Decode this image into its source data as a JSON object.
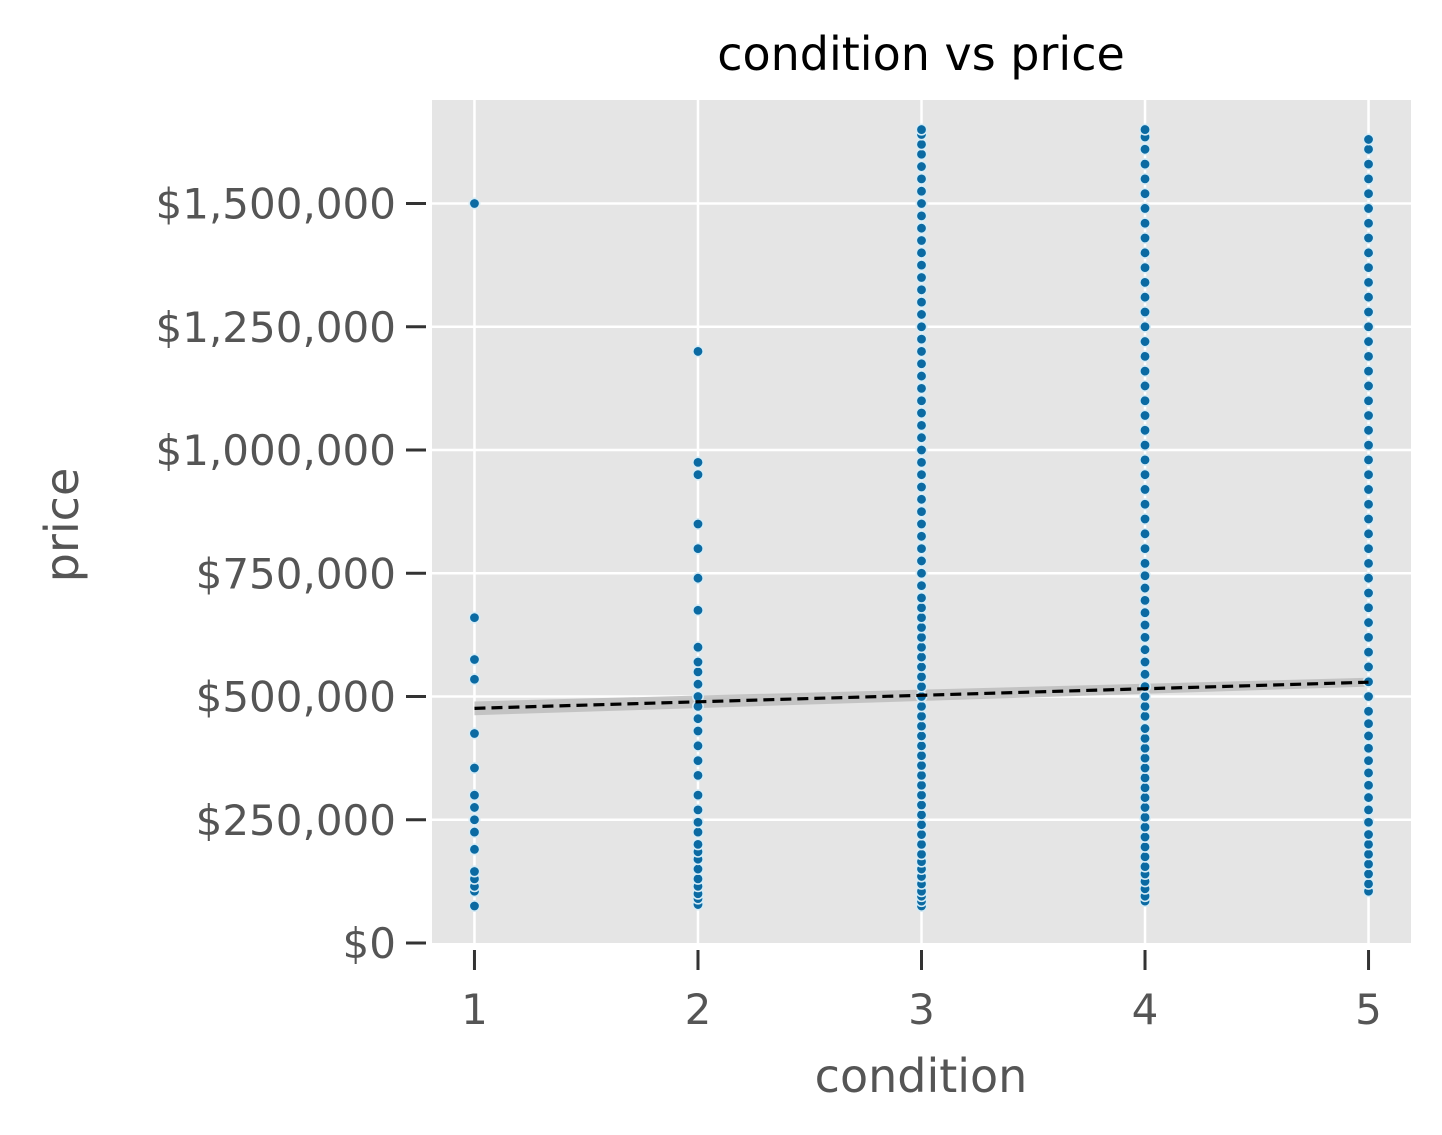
{
  "chart_data": {
    "type": "scatter",
    "title": "condition vs price",
    "xlabel": "condition",
    "ylabel": "price",
    "x_ticks": [
      "1",
      "2",
      "3",
      "4",
      "5"
    ],
    "y_ticks": [
      "$0",
      "$250,000",
      "$500,000",
      "$750,000",
      "$1,000,000",
      "$1,250,000",
      "$1,500,000"
    ],
    "y_tick_values": [
      0,
      250000,
      500000,
      750000,
      1000000,
      1250000,
      1500000
    ],
    "xlim": [
      0.81,
      5.19
    ],
    "ylim": [
      0,
      1710000
    ],
    "grid": true,
    "series": [
      {
        "x": 1,
        "y": [
          75000,
          105000,
          115000,
          130000,
          145000,
          190000,
          225000,
          250000,
          275000,
          300000,
          355000,
          425000,
          535000,
          575000,
          660000,
          1500000
        ]
      },
      {
        "x": 2,
        "y": [
          78000,
          90000,
          100000,
          115000,
          130000,
          150000,
          170000,
          185000,
          200000,
          225000,
          245000,
          270000,
          300000,
          340000,
          370000,
          400000,
          430000,
          455000,
          480000,
          500000,
          525000,
          550000,
          570000,
          600000,
          675000,
          740000,
          800000,
          850000,
          950000,
          975000,
          1200000
        ]
      },
      {
        "x": 3,
        "y": [
          75000,
          85000,
          95000,
          105000,
          120000,
          135000,
          150000,
          165000,
          180000,
          200000,
          220000,
          240000,
          260000,
          280000,
          300000,
          320000,
          340000,
          360000,
          380000,
          400000,
          420000,
          440000,
          460000,
          480000,
          500000,
          520000,
          540000,
          560000,
          580000,
          600000,
          620000,
          640000,
          660000,
          680000,
          700000,
          725000,
          750000,
          775000,
          800000,
          825000,
          850000,
          875000,
          900000,
          925000,
          950000,
          975000,
          1000000,
          1025000,
          1050000,
          1075000,
          1100000,
          1125000,
          1150000,
          1175000,
          1200000,
          1225000,
          1250000,
          1275000,
          1300000,
          1325000,
          1350000,
          1375000,
          1400000,
          1425000,
          1450000,
          1475000,
          1500000,
          1525000,
          1550000,
          1575000,
          1600000,
          1620000,
          1640000,
          1650000
        ]
      },
      {
        "x": 4,
        "y": [
          85000,
          95000,
          110000,
          125000,
          140000,
          155000,
          175000,
          195000,
          215000,
          235000,
          255000,
          275000,
          295000,
          315000,
          335000,
          355000,
          375000,
          395000,
          415000,
          435000,
          460000,
          480000,
          500000,
          520000,
          545000,
          570000,
          595000,
          620000,
          645000,
          670000,
          695000,
          720000,
          745000,
          770000,
          800000,
          830000,
          860000,
          890000,
          920000,
          950000,
          980000,
          1010000,
          1040000,
          1070000,
          1100000,
          1130000,
          1160000,
          1190000,
          1220000,
          1250000,
          1280000,
          1310000,
          1340000,
          1370000,
          1400000,
          1430000,
          1460000,
          1490000,
          1520000,
          1550000,
          1580000,
          1610000,
          1635000,
          1650000
        ]
      },
      {
        "x": 5,
        "y": [
          105000,
          120000,
          140000,
          160000,
          180000,
          200000,
          220000,
          245000,
          270000,
          295000,
          320000,
          345000,
          370000,
          395000,
          420000,
          445000,
          470000,
          500000,
          530000,
          560000,
          590000,
          620000,
          650000,
          680000,
          710000,
          740000,
          770000,
          800000,
          830000,
          860000,
          890000,
          920000,
          950000,
          980000,
          1010000,
          1040000,
          1070000,
          1100000,
          1130000,
          1160000,
          1190000,
          1220000,
          1250000,
          1280000,
          1310000,
          1340000,
          1370000,
          1400000,
          1430000,
          1460000,
          1490000,
          1520000,
          1550000,
          1580000,
          1610000,
          1630000
        ]
      }
    ],
    "regression": {
      "style": "dashed",
      "color": "#000000",
      "x": [
        1,
        5
      ],
      "y": [
        476000,
        529000
      ],
      "ci_lower": [
        462000,
        520000
      ],
      "ci_upper": [
        490000,
        538000
      ]
    },
    "colors": {
      "panel_background": "#e5e5e5",
      "grid": "#ffffff",
      "point_fill": "#0b6aa2",
      "point_edge": "#d6ebf5",
      "ci_band": "#bdbdbd"
    }
  }
}
